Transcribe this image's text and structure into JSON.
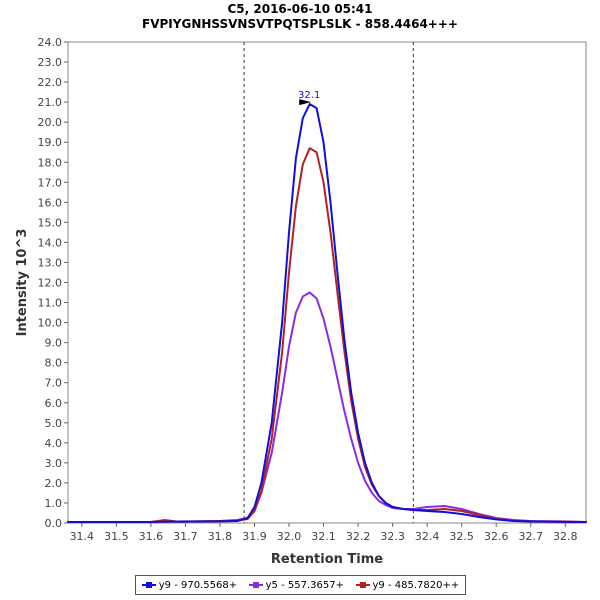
{
  "chart_data": {
    "type": "line",
    "title": "C5, 2016-06-10 05:41",
    "subtitle": "FVPIYGNHSSVNSVTPQTSPLSLK - 858.4464+++",
    "xlabel": "Retention Time",
    "ylabel": "Intensity 10^3",
    "xlim": [
      31.36,
      32.86
    ],
    "ylim": [
      0,
      24
    ],
    "x_ticks": [
      "31.4",
      "31.5",
      "31.6",
      "31.7",
      "31.8",
      "31.9",
      "32.0",
      "32.1",
      "32.2",
      "32.3",
      "32.4",
      "32.5",
      "32.6",
      "32.7",
      "32.8"
    ],
    "y_ticks": [
      "0.0",
      "1.0",
      "2.0",
      "3.0",
      "4.0",
      "5.0",
      "6.0",
      "7.0",
      "8.0",
      "9.0",
      "10.0",
      "11.0",
      "12.0",
      "13.0",
      "14.0",
      "15.0",
      "16.0",
      "17.0",
      "18.0",
      "19.0",
      "20.0",
      "21.0",
      "22.0",
      "23.0",
      "24.0"
    ],
    "boundaries": [
      31.87,
      32.36
    ],
    "peak_annotation": {
      "x": 32.07,
      "y": 20.9,
      "label": "32.1"
    },
    "legend_position": "bottom-center",
    "series": [
      {
        "name": "y9 - 970.5568+",
        "color": "#1010d8",
        "x": [
          31.36,
          31.6,
          31.7,
          31.8,
          31.85,
          31.88,
          31.9,
          31.92,
          31.95,
          31.98,
          32.0,
          32.02,
          32.04,
          32.06,
          32.08,
          32.1,
          32.12,
          32.14,
          32.16,
          32.18,
          32.2,
          32.22,
          32.24,
          32.26,
          32.28,
          32.3,
          32.33,
          32.36,
          32.4,
          32.45,
          32.5,
          32.55,
          32.6,
          32.65,
          32.7,
          32.8,
          32.86
        ],
        "values": [
          0.05,
          0.05,
          0.08,
          0.08,
          0.1,
          0.25,
          0.8,
          2.0,
          5.0,
          10.0,
          14.5,
          18.2,
          20.2,
          20.9,
          20.7,
          19.0,
          16.0,
          12.5,
          9.2,
          6.5,
          4.5,
          3.0,
          2.0,
          1.35,
          1.0,
          0.8,
          0.7,
          0.65,
          0.6,
          0.55,
          0.45,
          0.3,
          0.18,
          0.1,
          0.08,
          0.05,
          0.05
        ]
      },
      {
        "name": "y5 - 557.3657+",
        "color": "#8a2be2",
        "x": [
          31.36,
          31.6,
          31.64,
          31.68,
          31.8,
          31.85,
          31.88,
          31.9,
          31.92,
          31.95,
          31.98,
          32.0,
          32.02,
          32.04,
          32.06,
          32.08,
          32.1,
          32.12,
          32.14,
          32.16,
          32.18,
          32.2,
          32.22,
          32.24,
          32.26,
          32.28,
          32.3,
          32.33,
          32.36,
          32.4,
          32.45,
          32.5,
          32.55,
          32.6,
          32.65,
          32.7,
          32.8,
          32.86
        ],
        "values": [
          0.05,
          0.05,
          0.15,
          0.06,
          0.1,
          0.15,
          0.25,
          0.6,
          1.5,
          3.5,
          6.5,
          8.8,
          10.5,
          11.3,
          11.5,
          11.2,
          10.2,
          8.8,
          7.2,
          5.6,
          4.2,
          3.0,
          2.1,
          1.5,
          1.1,
          0.9,
          0.75,
          0.7,
          0.7,
          0.8,
          0.85,
          0.7,
          0.45,
          0.25,
          0.15,
          0.1,
          0.08,
          0.05
        ]
      },
      {
        "name": "y9 - 485.7820++",
        "color": "#b22222",
        "x": [
          31.36,
          31.6,
          31.64,
          31.68,
          31.8,
          31.85,
          31.88,
          31.9,
          31.92,
          31.95,
          31.98,
          32.0,
          32.02,
          32.04,
          32.06,
          32.08,
          32.1,
          32.12,
          32.14,
          32.16,
          32.18,
          32.2,
          32.22,
          32.24,
          32.26,
          32.28,
          32.3,
          32.33,
          32.36,
          32.4,
          32.45,
          32.5,
          32.55,
          32.6,
          32.65,
          32.7,
          32.8,
          32.86
        ],
        "values": [
          0.05,
          0.05,
          0.12,
          0.06,
          0.1,
          0.12,
          0.2,
          0.6,
          1.6,
          4.2,
          8.5,
          12.5,
          15.8,
          17.9,
          18.7,
          18.5,
          17.0,
          14.5,
          11.5,
          8.6,
          6.1,
          4.2,
          2.8,
          1.9,
          1.35,
          1.0,
          0.8,
          0.7,
          0.65,
          0.65,
          0.7,
          0.6,
          0.4,
          0.2,
          0.12,
          0.08,
          0.06,
          0.05
        ]
      }
    ]
  }
}
